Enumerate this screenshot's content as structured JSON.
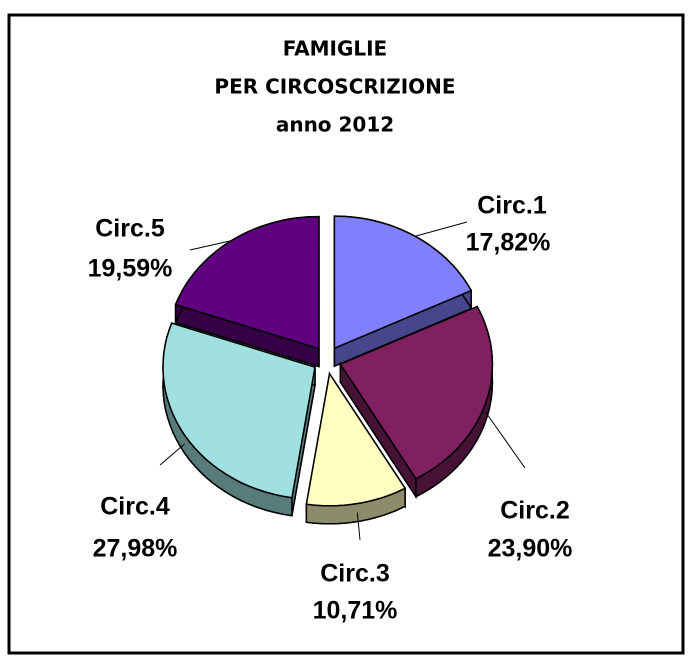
{
  "chart_data": {
    "type": "pie",
    "title": [
      "FAMIGLIE",
      "PER CIRCOSCRIZIONE",
      "anno 2012"
    ],
    "categories": [
      "Circ.1",
      "Circ.2",
      "Circ.3",
      "Circ.4",
      "Circ.5"
    ],
    "values": [
      17.82,
      23.9,
      10.71,
      27.98,
      19.59
    ],
    "value_labels": [
      "17,82%",
      "23,90%",
      "10,71%",
      "27,98%",
      "19,59%"
    ],
    "colors": [
      "#8080ff",
      "#802060",
      "#ffffc0",
      "#a0e0e0",
      "#600080"
    ]
  }
}
